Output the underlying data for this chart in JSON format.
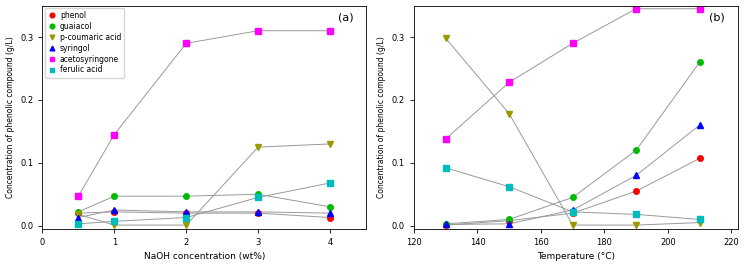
{
  "panel_a": {
    "x": [
      0.5,
      1,
      2,
      3,
      4
    ],
    "phenol": [
      0.02,
      0.022,
      0.02,
      0.02,
      0.013
    ],
    "guaiacol": [
      0.022,
      0.047,
      0.047,
      0.05,
      0.03
    ],
    "p_coumaric_acid": [
      0.018,
      0.001,
      0.001,
      0.125,
      0.13
    ],
    "syringol": [
      0.013,
      0.025,
      0.022,
      0.022,
      0.02
    ],
    "acetosyringone": [
      0.047,
      0.145,
      0.29,
      0.31,
      0.31
    ],
    "ferulic_acid": [
      0.003,
      0.007,
      0.013,
      0.045,
      0.068
    ],
    "xlabel": "NaOH concentration (wt%)",
    "ylabel": "Concentration of phenolic compound (g/L)",
    "xlim": [
      0,
      4.5
    ],
    "ylim": [
      -0.005,
      0.35
    ],
    "xticks": [
      0,
      1,
      2,
      3,
      4
    ],
    "yticks": [
      0.0,
      0.1,
      0.2,
      0.3
    ],
    "label": "(a)"
  },
  "panel_b": {
    "x": [
      130,
      150,
      170,
      190,
      210
    ],
    "phenol": [
      0.001,
      0.008,
      0.02,
      0.055,
      0.107
    ],
    "guaiacol": [
      0.003,
      0.01,
      0.045,
      0.12,
      0.26
    ],
    "p_coumaric_acid": [
      0.298,
      0.178,
      0.001,
      0.001,
      0.005
    ],
    "syringol": [
      0.002,
      0.003,
      0.025,
      0.08,
      0.16
    ],
    "acetosyringone": [
      0.138,
      0.228,
      0.29,
      0.345,
      0.345
    ],
    "ferulic_acid": [
      0.092,
      0.062,
      0.022,
      0.018,
      0.01
    ],
    "xlabel": "Temperature (°C)",
    "ylabel": "Concentration of phenolic compound (g/L)",
    "xlim": [
      120,
      222
    ],
    "ylim": [
      -0.005,
      0.35
    ],
    "xticks": [
      120,
      140,
      160,
      180,
      200,
      220
    ],
    "yticks": [
      0.0,
      0.1,
      0.2,
      0.3
    ],
    "label": "(b)"
  },
  "series": [
    "phenol",
    "guaiacol",
    "p_coumaric_acid",
    "syringol",
    "acetosyringone",
    "ferulic_acid"
  ],
  "labels": [
    "phenol",
    "guaiacol",
    "p-coumaric acid",
    "syringol",
    "acetosyringone",
    "ferulic acid"
  ],
  "colors": [
    "#ff0000",
    "#00bb00",
    "#999900",
    "#0000ff",
    "#ff00ff",
    "#00bbbb"
  ],
  "markers": [
    "o",
    "o",
    "v",
    "^",
    "s",
    "s"
  ],
  "line_color": "#999999",
  "linewidth": 0.7,
  "markersize": 4
}
